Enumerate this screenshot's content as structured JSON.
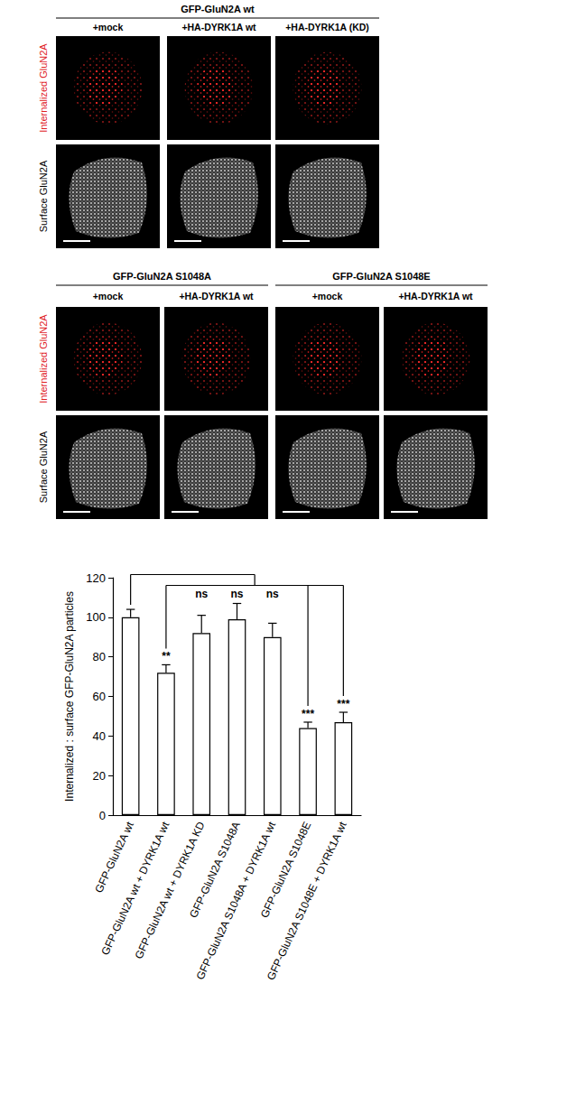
{
  "panels": {
    "row_labels": [
      "Internalized GluN2A",
      "Surface GluN2A"
    ],
    "groups": [
      {
        "title": "GFP-GluN2A wt",
        "columns": [
          "+mock",
          "+HA-DYRK1A wt",
          "+HA-DYRK1A (KD)"
        ]
      },
      {
        "title": "GFP-GluN2A S1048A",
        "columns": [
          "+mock",
          "+HA-DYRK1A wt"
        ]
      },
      {
        "title": "GFP-GluN2A S1048E",
        "columns": [
          "+mock",
          "+HA-DYRK1A wt"
        ]
      }
    ]
  },
  "chart_data": {
    "type": "bar",
    "y_label": "Internalized : surface GFP-GluN2A particles",
    "categories": [
      "GFP-GluN2A wt",
      "GFP-GluN2A wt + DYRK1A wt",
      "GFP-GluN2A wt + DYRK1A KD",
      "GFP-GluN2A S1048A",
      "GFP-GluN2A S1048A + DYRK1A wt",
      "GFP-GluN2A S1048E",
      "GFP-GluN2A S1048E + DYRK1A wt"
    ],
    "values": [
      100,
      72,
      92,
      99,
      90,
      44,
      47
    ],
    "errors": [
      4,
      4,
      9,
      8,
      7,
      3,
      5
    ],
    "significance": [
      null,
      "**",
      "ns",
      "ns",
      "ns",
      "***",
      "***"
    ],
    "color": "#ffffff",
    "ylim": [
      0,
      120
    ],
    "yticks": [
      0,
      20,
      40,
      60,
      80,
      100,
      120
    ],
    "grid": false
  }
}
